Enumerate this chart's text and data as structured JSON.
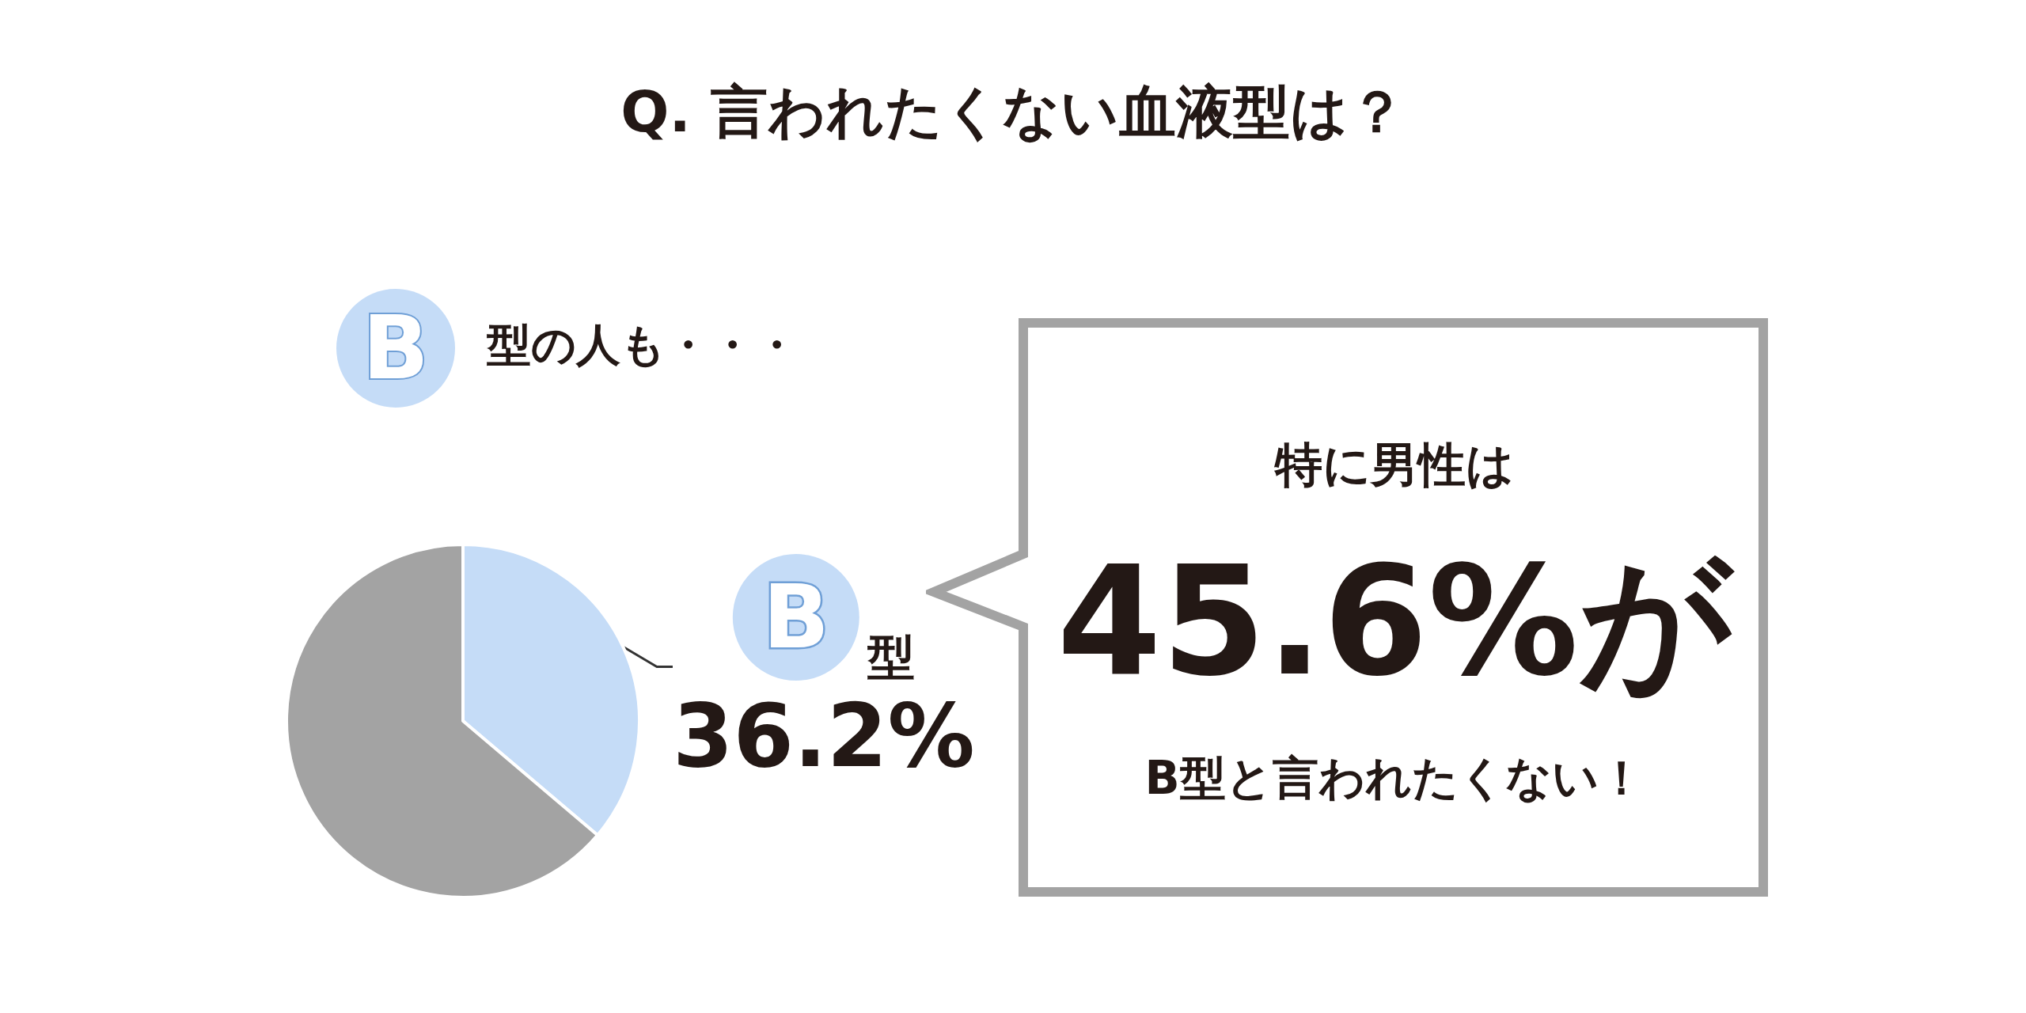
{
  "chart_data": {
    "type": "pie",
    "title": "Q. 言われたくない血液型は？",
    "categories": [
      "B型",
      null
    ],
    "values": [
      36.2,
      63.8
    ],
    "colors": [
      "#c5dcf7",
      "#a3a3a3"
    ],
    "value_labels": [
      "36.2%",
      null
    ],
    "legend": false,
    "annotations": [
      "B型の人も・・・",
      "特に男性は",
      "45.6%が",
      "B型と言われたくない！"
    ]
  }
}
